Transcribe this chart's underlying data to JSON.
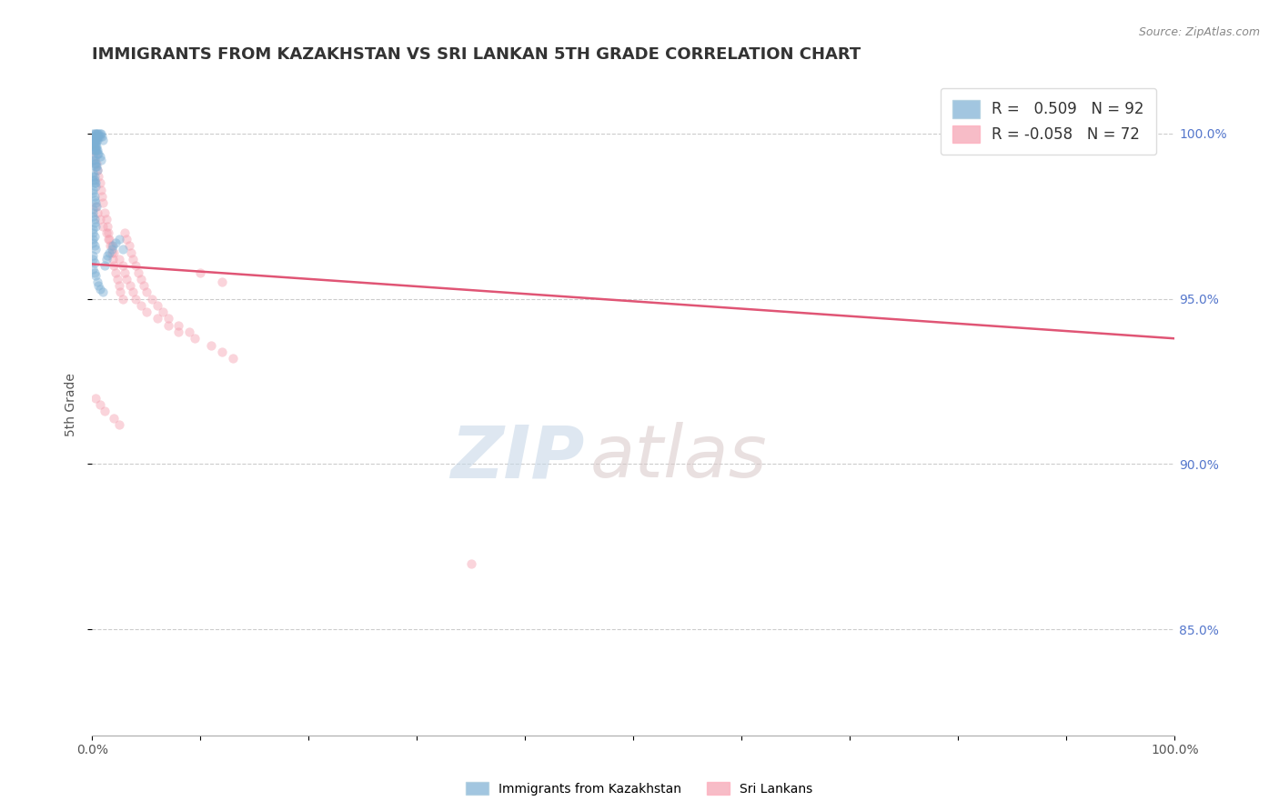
{
  "title": "IMMIGRANTS FROM KAZAKHSTAN VS SRI LANKAN 5TH GRADE CORRELATION CHART",
  "source": "Source: ZipAtlas.com",
  "ylabel": "5th Grade",
  "xlim": [
    0,
    1.0
  ],
  "ylim": [
    0.818,
    1.018
  ],
  "xticks": [
    0.0,
    0.1,
    0.2,
    0.3,
    0.4,
    0.5,
    0.6,
    0.7,
    0.8,
    0.9,
    1.0
  ],
  "xticklabels": [
    "0.0%",
    "",
    "",
    "",
    "",
    "",
    "",
    "",
    "",
    "",
    "100.0%"
  ],
  "yticks": [
    0.85,
    0.9,
    0.95,
    1.0
  ],
  "yticklabels": [
    "85.0%",
    "90.0%",
    "95.0%",
    "100.0%"
  ],
  "legend_R1": "0.509",
  "legend_N1": "92",
  "legend_R2": "-0.058",
  "legend_N2": "72",
  "blue_color": "#7BAFD4",
  "pink_color": "#F4A0B0",
  "trend_pink_color": "#E05575",
  "watermark_zip": "ZIP",
  "watermark_atlas": "atlas",
  "blue_label": "Immigrants from Kazakhstan",
  "pink_label": "Sri Lankans",
  "blue_scatter_x": [
    0.001,
    0.001,
    0.001,
    0.001,
    0.002,
    0.002,
    0.002,
    0.002,
    0.003,
    0.003,
    0.003,
    0.003,
    0.004,
    0.004,
    0.004,
    0.005,
    0.005,
    0.005,
    0.006,
    0.006,
    0.007,
    0.007,
    0.008,
    0.009,
    0.01,
    0.001,
    0.001,
    0.002,
    0.002,
    0.003,
    0.003,
    0.004,
    0.004,
    0.005,
    0.005,
    0.006,
    0.007,
    0.008,
    0.001,
    0.001,
    0.002,
    0.002,
    0.003,
    0.003,
    0.004,
    0.005,
    0.001,
    0.001,
    0.001,
    0.002,
    0.002,
    0.002,
    0.003,
    0.003,
    0.001,
    0.001,
    0.002,
    0.002,
    0.003,
    0.004,
    0.001,
    0.001,
    0.001,
    0.002,
    0.002,
    0.003,
    0.001,
    0.001,
    0.002,
    0.001,
    0.001,
    0.002,
    0.003,
    0.001,
    0.001,
    0.002,
    0.001,
    0.002,
    0.003,
    0.005,
    0.006,
    0.007,
    0.01,
    0.012,
    0.013,
    0.014,
    0.016,
    0.018,
    0.019,
    0.022,
    0.025,
    0.028
  ],
  "blue_scatter_y": [
    1.0,
    0.999,
    0.998,
    0.997,
    1.0,
    0.999,
    0.998,
    0.997,
    1.0,
    0.999,
    0.998,
    0.997,
    1.0,
    0.999,
    0.998,
    1.0,
    0.999,
    0.998,
    1.0,
    0.999,
    1.0,
    0.999,
    1.0,
    0.999,
    0.998,
    0.996,
    0.995,
    0.996,
    0.995,
    0.996,
    0.995,
    0.996,
    0.995,
    0.995,
    0.994,
    0.994,
    0.993,
    0.992,
    0.993,
    0.992,
    0.992,
    0.991,
    0.991,
    0.99,
    0.99,
    0.989,
    0.988,
    0.987,
    0.986,
    0.987,
    0.986,
    0.985,
    0.985,
    0.984,
    0.983,
    0.982,
    0.981,
    0.98,
    0.979,
    0.978,
    0.977,
    0.976,
    0.975,
    0.974,
    0.973,
    0.972,
    0.971,
    0.97,
    0.969,
    0.968,
    0.967,
    0.966,
    0.965,
    0.963,
    0.962,
    0.961,
    0.959,
    0.958,
    0.957,
    0.955,
    0.954,
    0.953,
    0.952,
    0.96,
    0.962,
    0.963,
    0.964,
    0.965,
    0.966,
    0.967,
    0.968,
    0.965
  ],
  "pink_scatter_x": [
    0.001,
    0.002,
    0.003,
    0.004,
    0.005,
    0.006,
    0.007,
    0.008,
    0.009,
    0.01,
    0.012,
    0.013,
    0.014,
    0.015,
    0.016,
    0.017,
    0.018,
    0.019,
    0.02,
    0.022,
    0.023,
    0.025,
    0.026,
    0.028,
    0.03,
    0.032,
    0.034,
    0.036,
    0.038,
    0.04,
    0.043,
    0.045,
    0.048,
    0.05,
    0.055,
    0.06,
    0.065,
    0.07,
    0.08,
    0.09,
    0.1,
    0.12,
    0.003,
    0.005,
    0.007,
    0.01,
    0.013,
    0.015,
    0.018,
    0.02,
    0.025,
    0.028,
    0.03,
    0.032,
    0.035,
    0.038,
    0.04,
    0.045,
    0.05,
    0.06,
    0.07,
    0.08,
    0.095,
    0.11,
    0.12,
    0.13,
    0.003,
    0.007,
    0.012,
    0.02,
    0.025,
    0.35
  ],
  "pink_scatter_y": [
    0.997,
    0.995,
    0.993,
    0.991,
    0.989,
    0.987,
    0.985,
    0.983,
    0.981,
    0.979,
    0.976,
    0.974,
    0.972,
    0.97,
    0.968,
    0.966,
    0.964,
    0.962,
    0.96,
    0.958,
    0.956,
    0.954,
    0.952,
    0.95,
    0.97,
    0.968,
    0.966,
    0.964,
    0.962,
    0.96,
    0.958,
    0.956,
    0.954,
    0.952,
    0.95,
    0.948,
    0.946,
    0.944,
    0.942,
    0.94,
    0.958,
    0.955,
    0.978,
    0.976,
    0.974,
    0.972,
    0.97,
    0.968,
    0.966,
    0.964,
    0.962,
    0.96,
    0.958,
    0.956,
    0.954,
    0.952,
    0.95,
    0.948,
    0.946,
    0.944,
    0.942,
    0.94,
    0.938,
    0.936,
    0.934,
    0.932,
    0.92,
    0.918,
    0.916,
    0.914,
    0.912,
    0.87
  ],
  "pink_trendline_x": [
    0.0,
    1.0
  ],
  "pink_trendline_y": [
    0.9605,
    0.938
  ],
  "grid_color": "#CCCCCC",
  "title_fontsize": 13,
  "axis_label_fontsize": 10,
  "tick_fontsize": 10,
  "legend_fontsize": 12,
  "scatter_size": 55,
  "scatter_alpha": 0.45,
  "tick_color_right": "#5577CC"
}
